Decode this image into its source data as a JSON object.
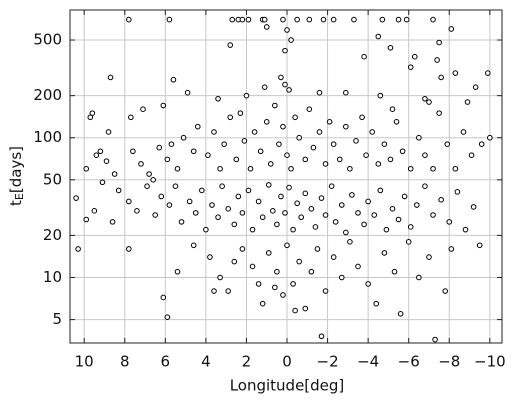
{
  "chart_data": {
    "type": "scatter",
    "xlabel": "Longitude[deg]",
    "ylabel": {
      "main": "t",
      "sub": "E",
      "rest": "[days]"
    },
    "xlim": [
      10.7,
      -10.6
    ],
    "ylim": [
      3.4,
      820
    ],
    "yscale": "log",
    "grid": true,
    "xticks": [
      10,
      8,
      6,
      4,
      2,
      0,
      {
        "value": -2,
        "label": "−2"
      },
      {
        "value": -4,
        "label": "−4"
      },
      {
        "value": -6,
        "label": "−6"
      },
      {
        "value": -8,
        "label": "−8"
      },
      {
        "value": -10,
        "label": "−10"
      }
    ],
    "yticks": [
      5,
      10,
      20,
      50,
      100,
      200,
      500
    ],
    "marker_color": "#000000",
    "x": [
      7.8,
      5.8,
      2.7,
      2.4,
      2.2,
      1.9,
      1.2,
      1.1,
      0.2,
      -0.5,
      -1.1,
      -1.8,
      -2.3,
      -3.3,
      -4.7,
      -5.5,
      -5.9,
      -7.2,
      1.0,
      2.8,
      0.0,
      -0.2,
      0.1,
      -3.8,
      -4.5,
      -5.1,
      -6.3,
      -7.5,
      -7.4,
      -8.1,
      -8.3,
      -9.3,
      -9.9,
      -7.6,
      -6.1,
      8.7,
      5.6,
      0.3,
      0.1,
      -0.1,
      1.1,
      2.0,
      4.9,
      3.4,
      6.1,
      7.7,
      9.6,
      9.7,
      7.1,
      -1.6,
      -2.9,
      -4.6,
      -6.8,
      -7.0,
      -8.9,
      -5.2,
      9.9,
      9.4,
      9.2,
      8.8,
      8.5,
      8.9,
      7.6,
      7.2,
      6.6,
      6.3,
      5.9,
      5.7,
      5.4,
      5.1,
      4.6,
      4.4,
      3.9,
      3.6,
      3.3,
      3.1,
      2.8,
      2.5,
      2.3,
      2.1,
      1.8,
      1.6,
      1.3,
      1.0,
      0.8,
      0.6,
      0.4,
      0.2,
      0.0,
      -0.2,
      -0.4,
      -0.6,
      -0.9,
      -1.1,
      -1.3,
      -1.6,
      -1.9,
      -2.1,
      -2.3,
      -2.6,
      -2.9,
      -3.1,
      -3.4,
      -3.7,
      -3.9,
      -4.2,
      -4.5,
      -4.8,
      -5.1,
      -5.4,
      -5.7,
      -6.1,
      -6.5,
      -6.8,
      -7.2,
      -7.5,
      -7.9,
      -8.3,
      -8.7,
      -9.1,
      -9.6,
      -10.0,
      6.8,
      10.4,
      9.5,
      9.1,
      8.3,
      7.8,
      7.4,
      6.9,
      6.5,
      6.2,
      5.8,
      5.5,
      5.2,
      4.8,
      4.5,
      4.2,
      4.0,
      3.7,
      3.4,
      3.2,
      2.9,
      2.6,
      2.4,
      2.2,
      1.9,
      1.7,
      1.4,
      1.2,
      0.9,
      0.7,
      0.5,
      0.3,
      0.1,
      -0.1,
      -0.3,
      -0.5,
      -0.7,
      -0.9,
      -1.2,
      -1.4,
      -1.7,
      -1.9,
      -2.2,
      -2.4,
      -2.7,
      -2.9,
      -3.2,
      -3.5,
      -3.8,
      -4.0,
      -4.3,
      -4.6,
      -4.9,
      -5.2,
      -5.5,
      -5.8,
      -6.1,
      -6.4,
      -6.8,
      -7.2,
      -7.6,
      -8.0,
      -8.4,
      -8.8,
      -9.2,
      9.9,
      8.6,
      10.3,
      7.8,
      6.1,
      5.9,
      5.4,
      4.6,
      3.8,
      3.3,
      2.9,
      2.6,
      2.2,
      1.7,
      1.4,
      1.2,
      0.9,
      0.5,
      0.2,
      0.0,
      -0.3,
      -0.4,
      -0.6,
      -0.9,
      -1.2,
      -1.5,
      -1.7,
      -1.9,
      -2.3,
      -2.7,
      -3.1,
      -3.5,
      -4.0,
      -4.4,
      -4.8,
      -5.3,
      -5.6,
      -6.0,
      -6.5,
      -7.0,
      -7.3,
      -7.8,
      -8.1,
      -9.5,
      0.6,
      3.6
    ],
    "y": [
      700,
      700,
      700,
      700,
      700,
      700,
      700,
      700,
      700,
      700,
      700,
      700,
      700,
      700,
      700,
      700,
      700,
      700,
      620,
      460,
      590,
      500,
      420,
      380,
      530,
      440,
      380,
      480,
      360,
      600,
      290,
      230,
      290,
      270,
      320,
      270,
      260,
      270,
      240,
      220,
      230,
      200,
      210,
      190,
      170,
      140,
      150,
      140,
      160,
      210,
      210,
      200,
      190,
      180,
      180,
      160,
      60,
      75,
      80,
      110,
      55,
      68,
      80,
      65,
      50,
      85,
      70,
      90,
      60,
      100,
      80,
      120,
      75,
      110,
      60,
      90,
      140,
      70,
      150,
      95,
      60,
      110,
      80,
      130,
      65,
      170,
      90,
      120,
      75,
      60,
      140,
      100,
      70,
      160,
      85,
      110,
      65,
      130,
      90,
      70,
      120,
      60,
      95,
      140,
      75,
      110,
      65,
      90,
      70,
      130,
      80,
      60,
      100,
      75,
      60,
      150,
      90,
      60,
      110,
      75,
      90,
      100,
      55,
      37,
      30,
      48,
      42,
      35,
      30,
      45,
      28,
      38,
      33,
      45,
      25,
      35,
      29,
      42,
      22,
      33,
      27,
      45,
      31,
      24,
      38,
      29,
      42,
      22,
      35,
      27,
      46,
      30,
      24,
      38,
      29,
      44,
      22,
      34,
      27,
      40,
      31,
      23,
      37,
      28,
      45,
      25,
      33,
      21,
      39,
      29,
      24,
      35,
      28,
      42,
      22,
      31,
      26,
      38,
      23,
      33,
      45,
      28,
      36,
      25,
      41,
      22,
      32,
      26,
      25,
      16,
      16,
      7.2,
      5.2,
      11,
      17,
      14,
      10,
      8,
      13,
      16,
      12,
      9,
      6.5,
      15,
      11,
      7.5,
      17,
      9,
      5.8,
      13,
      6,
      11,
      16,
      3.8,
      8,
      14,
      10,
      18,
      12,
      9,
      6.5,
      15,
      11,
      5.5,
      18,
      10,
      14,
      3.6,
      8,
      16,
      17,
      8.5,
      8
    ]
  }
}
